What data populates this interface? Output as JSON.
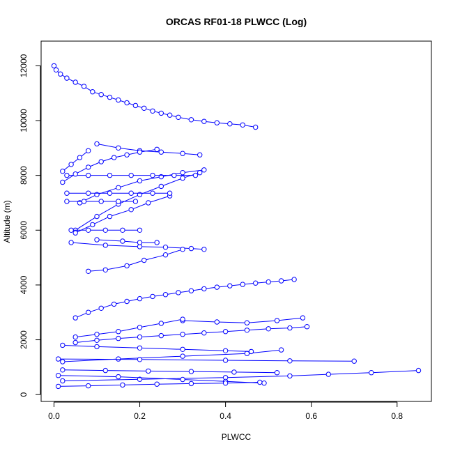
{
  "chart_data": {
    "type": "scatter",
    "title": "ORCAS RF01-18 PLWCC (Log)",
    "xlabel": "PLWCC",
    "ylabel": "Altitude (m)",
    "xlim": [
      -0.03,
      0.88
    ],
    "ylim": [
      -250,
      12900
    ],
    "xticks": [
      0.0,
      0.2,
      0.4,
      0.6,
      0.8
    ],
    "xtick_labels": [
      "0.0",
      "0.2",
      "0.4",
      "0.6",
      "0.8"
    ],
    "yticks": [
      0,
      2000,
      4000,
      6000,
      8000,
      10000,
      12000
    ],
    "ytick_labels": [
      "0",
      "2000",
      "4000",
      "6000",
      "8000",
      "10000",
      "12000"
    ],
    "grid": false,
    "legend": "none",
    "style": "points connected by lines (type='b')",
    "series": [
      {
        "color": "#0000ff",
        "x": [
          0.0,
          0.005,
          0.015,
          0.03,
          0.05,
          0.07,
          0.09,
          0.11,
          0.13,
          0.15,
          0.17,
          0.19,
          0.21,
          0.23,
          0.25,
          0.27,
          0.29,
          0.32,
          0.35,
          0.38,
          0.41,
          0.44,
          0.47
        ],
        "y": [
          12000,
          11850,
          11700,
          11550,
          11400,
          11250,
          11050,
          10950,
          10850,
          10750,
          10650,
          10550,
          10450,
          10350,
          10270,
          10200,
          10120,
          10030,
          9970,
          9920,
          9880,
          9840,
          9760
        ]
      },
      {
        "color": "#0000ff",
        "x": [
          0.05,
          0.08,
          0.11,
          0.14,
          0.17,
          0.2,
          0.23,
          0.26,
          0.29,
          0.32,
          0.35,
          0.38,
          0.41,
          0.44,
          0.47,
          0.5,
          0.53,
          0.56
        ],
        "y": [
          2800,
          3000,
          3150,
          3300,
          3400,
          3500,
          3580,
          3650,
          3720,
          3790,
          3860,
          3920,
          3970,
          4020,
          4070,
          4110,
          4150,
          4200
        ]
      },
      {
        "color": "#0000ff",
        "x": [
          0.05,
          0.1,
          0.15,
          0.2,
          0.25,
          0.3,
          0.35,
          0.4,
          0.45,
          0.5,
          0.55,
          0.59
        ],
        "y": [
          1900,
          1980,
          2050,
          2100,
          2150,
          2200,
          2250,
          2300,
          2350,
          2400,
          2430,
          2480
        ]
      },
      {
        "color": "#0000ff",
        "x": [
          0.3,
          0.38,
          0.45,
          0.52,
          0.58
        ],
        "y": [
          2700,
          2650,
          2620,
          2700,
          2800
        ]
      },
      {
        "color": "#0000ff",
        "x": [
          0.02,
          0.2,
          0.4,
          0.55,
          0.64,
          0.74,
          0.85
        ],
        "y": [
          500,
          560,
          620,
          680,
          740,
          800,
          880
        ]
      },
      {
        "color": "#0000ff",
        "x": [
          0.02,
          0.15,
          0.3,
          0.45,
          0.53
        ],
        "y": [
          1200,
          1300,
          1400,
          1500,
          1630
        ]
      },
      {
        "color": "#0000ff",
        "x": [
          0.01,
          0.2,
          0.4,
          0.55,
          0.7
        ],
        "y": [
          1300,
          1280,
          1250,
          1230,
          1220
        ]
      },
      {
        "color": "#0000ff",
        "x": [
          0.01,
          0.15,
          0.3,
          0.4,
          0.49
        ],
        "y": [
          700,
          650,
          550,
          480,
          420
        ]
      },
      {
        "color": "#0000ff",
        "x": [
          0.04,
          0.12,
          0.2,
          0.26,
          0.32,
          0.35
        ],
        "y": [
          5550,
          5450,
          5400,
          5380,
          5330,
          5300
        ]
      },
      {
        "color": "#0000ff",
        "x": [
          0.1,
          0.15,
          0.2,
          0.25,
          0.3,
          0.34
        ],
        "y": [
          9150,
          9000,
          8900,
          8850,
          8800,
          8750
        ]
      },
      {
        "color": "#0000ff",
        "x": [
          0.06,
          0.1,
          0.15,
          0.2,
          0.25,
          0.3,
          0.35
        ],
        "y": [
          7000,
          7300,
          7550,
          7800,
          7950,
          8100,
          8200
        ]
      },
      {
        "color": "#0000ff",
        "x": [
          0.05,
          0.1,
          0.15,
          0.2,
          0.25,
          0.3,
          0.34
        ],
        "y": [
          6000,
          6500,
          6950,
          7300,
          7600,
          7900,
          8100
        ]
      },
      {
        "color": "#0000ff",
        "x": [
          0.05,
          0.09,
          0.13,
          0.18,
          0.22,
          0.27
        ],
        "y": [
          5900,
          6200,
          6500,
          6750,
          7000,
          7250
        ]
      },
      {
        "color": "#0000ff",
        "x": [
          0.03,
          0.08,
          0.13,
          0.18,
          0.23,
          0.28,
          0.33
        ],
        "y": [
          8000,
          8000,
          8000,
          8000,
          8000,
          8000,
          8000
        ]
      },
      {
        "color": "#0000ff",
        "x": [
          0.03,
          0.08,
          0.13,
          0.18,
          0.23,
          0.27
        ],
        "y": [
          7350,
          7350,
          7350,
          7350,
          7350,
          7350
        ]
      },
      {
        "color": "#0000ff",
        "x": [
          0.03,
          0.07,
          0.11,
          0.15,
          0.19
        ],
        "y": [
          7050,
          7050,
          7050,
          7050,
          7050
        ]
      },
      {
        "color": "#0000ff",
        "x": [
          0.04,
          0.08,
          0.12,
          0.16,
          0.2
        ],
        "y": [
          6000,
          6000,
          6000,
          6000,
          6000
        ]
      },
      {
        "color": "#0000ff",
        "x": [
          0.1,
          0.16,
          0.2,
          0.24
        ],
        "y": [
          5650,
          5600,
          5550,
          5550
        ]
      },
      {
        "color": "#0000ff",
        "x": [
          0.02,
          0.05,
          0.08,
          0.11,
          0.14,
          0.17,
          0.2,
          0.24
        ],
        "y": [
          7750,
          8050,
          8300,
          8500,
          8650,
          8750,
          8850,
          8950
        ]
      },
      {
        "color": "#0000ff",
        "x": [
          0.02,
          0.04,
          0.06,
          0.08
        ],
        "y": [
          8150,
          8400,
          8650,
          8900
        ]
      },
      {
        "color": "#0000ff",
        "x": [
          0.05,
          0.1,
          0.15,
          0.2,
          0.25,
          0.3
        ],
        "y": [
          2100,
          2200,
          2300,
          2450,
          2600,
          2750
        ]
      },
      {
        "color": "#0000ff",
        "x": [
          0.02,
          0.1,
          0.2,
          0.3,
          0.4,
          0.46
        ],
        "y": [
          1800,
          1750,
          1700,
          1650,
          1600,
          1570
        ]
      },
      {
        "color": "#0000ff",
        "x": [
          0.02,
          0.12,
          0.22,
          0.32,
          0.42,
          0.52
        ],
        "y": [
          900,
          880,
          860,
          840,
          820,
          800
        ]
      },
      {
        "color": "#0000ff",
        "x": [
          0.01,
          0.08,
          0.16,
          0.24,
          0.32,
          0.4,
          0.48
        ],
        "y": [
          300,
          320,
          350,
          380,
          400,
          420,
          450
        ]
      },
      {
        "color": "#0000ff",
        "x": [
          0.08,
          0.12,
          0.17,
          0.21,
          0.26,
          0.3
        ],
        "y": [
          4500,
          4550,
          4700,
          4900,
          5100,
          5300
        ]
      }
    ]
  }
}
